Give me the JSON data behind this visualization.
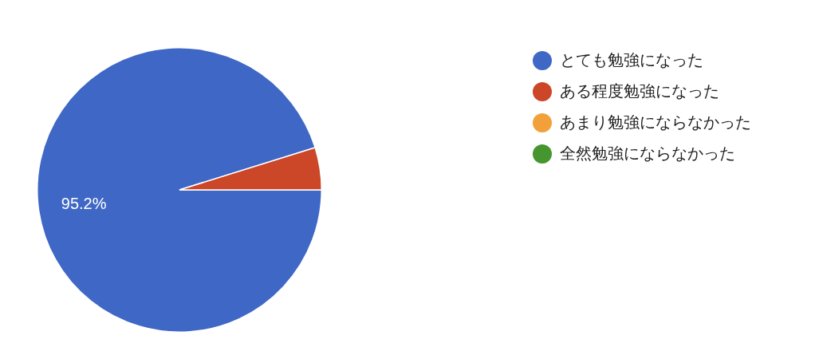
{
  "chart_data": {
    "type": "pie",
    "categories": [
      "とても勉強になった",
      "ある程度勉強になった",
      "あまり勉強にならなかった",
      "全然勉強にならなかった"
    ],
    "values": [
      95.2,
      4.8,
      0,
      0
    ],
    "colors": [
      "#3f67c6",
      "#cc4628",
      "#f2a03a",
      "#46962f"
    ],
    "value_labels": [
      "95.2%",
      null,
      null,
      null
    ],
    "legend": "right"
  }
}
